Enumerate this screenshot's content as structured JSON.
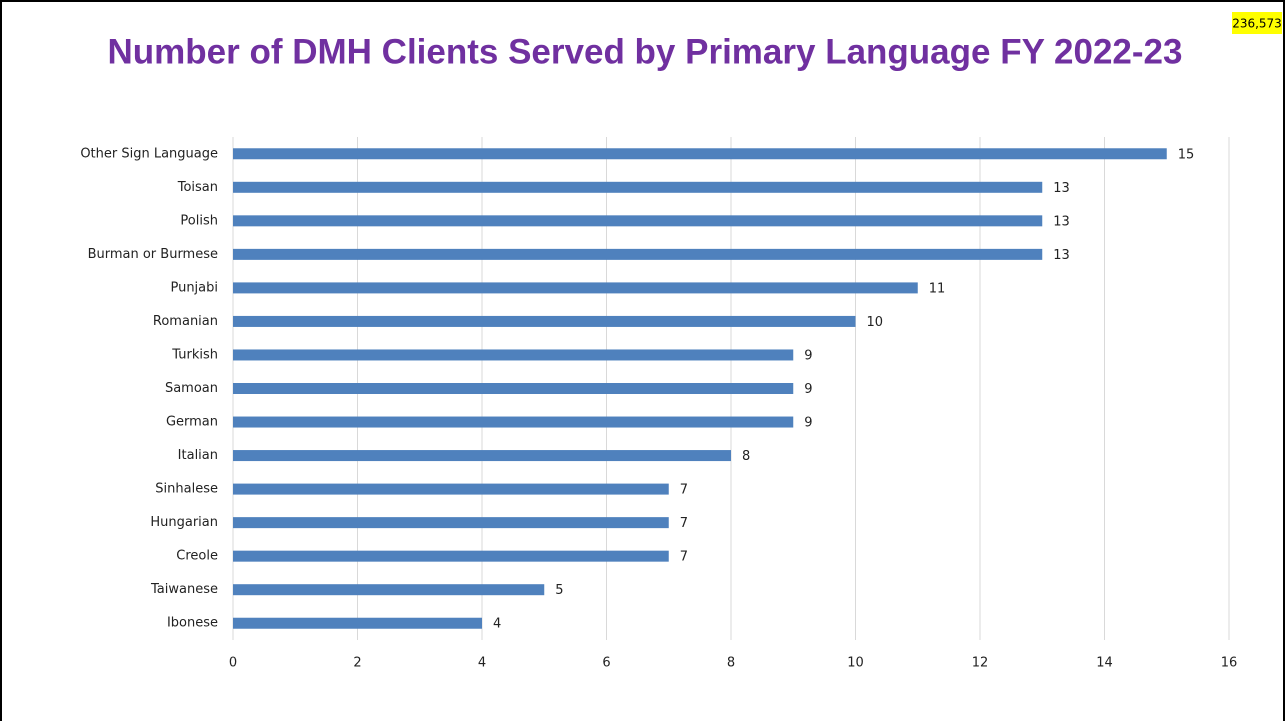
{
  "chart_data": {
    "type": "bar",
    "orientation": "horizontal",
    "title": "Number of DMH Clients Served by Primary Language FY 2022-23",
    "annotation": "236,573",
    "categories": [
      "Other Sign Language",
      "Toisan",
      "Polish",
      "Burman or Burmese",
      "Punjabi",
      "Romanian",
      "Turkish",
      "Samoan",
      "German",
      "Italian",
      "Sinhalese",
      "Hungarian",
      "Creole",
      "Taiwanese",
      "Ibonese"
    ],
    "values": [
      15,
      13,
      13,
      13,
      11,
      10,
      9,
      9,
      9,
      8,
      7,
      7,
      7,
      5,
      4
    ],
    "color": "#4f81bd",
    "xlim": [
      0,
      16
    ],
    "xticks": [
      0,
      2,
      4,
      6,
      8,
      10,
      12,
      14,
      16
    ],
    "grid": true
  }
}
